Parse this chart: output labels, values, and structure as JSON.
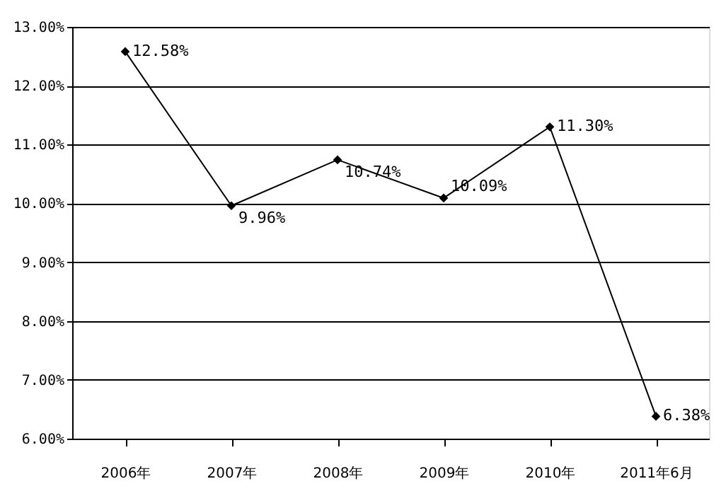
{
  "chart_data": {
    "type": "line",
    "categories": [
      "2006年",
      "2007年",
      "2008年",
      "2009年",
      "2010年",
      "2011年6月"
    ],
    "series": [
      {
        "color": "#000000",
        "values": [
          12.58,
          9.96,
          10.74,
          10.09,
          11.3,
          6.38
        ],
        "value_labels": [
          "12.58%",
          "9.96%",
          "10.74%",
          "10.09%",
          "11.30%",
          "6.38%"
        ]
      }
    ],
    "ylim": [
      6,
      13
    ],
    "yticks": [
      {
        "value": 6,
        "label": "6.00%"
      },
      {
        "value": 7,
        "label": "7.00%"
      },
      {
        "value": 8,
        "label": "8.00%"
      },
      {
        "value": 9,
        "label": "9.00%"
      },
      {
        "value": 10,
        "label": "10.00%"
      },
      {
        "value": 11,
        "label": "11.00%"
      },
      {
        "value": 12,
        "label": "12.00%"
      },
      {
        "value": 13,
        "label": "13.00%"
      }
    ],
    "grid": "y",
    "marker": "diamond",
    "line_style": "solid"
  }
}
